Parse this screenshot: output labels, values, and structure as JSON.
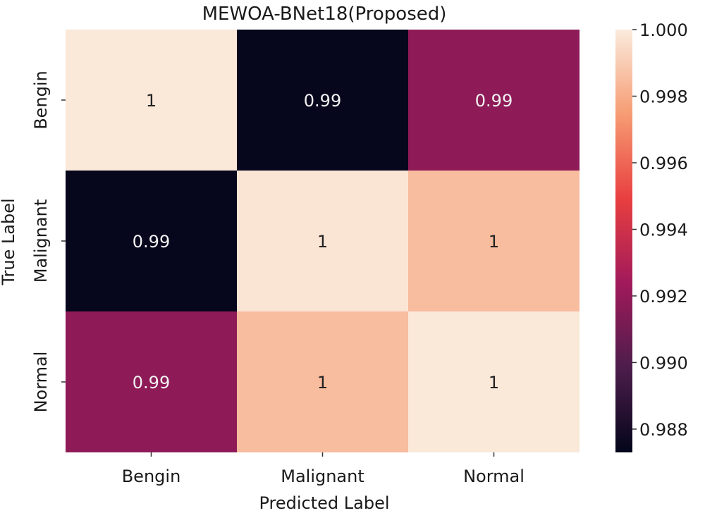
{
  "chart_data": {
    "type": "heatmap",
    "title": "MEWOA-BNet18(Proposed)",
    "xlabel": "Predicted Label",
    "ylabel": "True Label",
    "x_categories": [
      "Bengin",
      "Malignant",
      "Normal"
    ],
    "y_categories": [
      "Bengin",
      "Malignant",
      "Normal"
    ],
    "values": [
      [
        0.9999,
        0.9874,
        0.9918
      ],
      [
        0.9874,
        0.9998,
        0.9985
      ],
      [
        0.9918,
        0.9985,
        0.9999
      ]
    ],
    "cell_labels": [
      [
        "1",
        "0.99",
        "0.99"
      ],
      [
        "0.99",
        "1",
        "1"
      ],
      [
        "0.99",
        "1",
        "1"
      ]
    ],
    "colorbar": {
      "min": 0.9873,
      "max": 1.0,
      "ticks": [
        1.0,
        0.998,
        0.996,
        0.994,
        0.992,
        0.99,
        0.988
      ],
      "tick_labels": [
        "1.000",
        "0.998",
        "0.996",
        "0.994",
        "0.992",
        "0.990",
        "0.988"
      ]
    },
    "colormap": [
      "#03051a",
      "#4c1d4b",
      "#a11a5b",
      "#e83f3f",
      "#f69c73",
      "#faebdd"
    ]
  }
}
